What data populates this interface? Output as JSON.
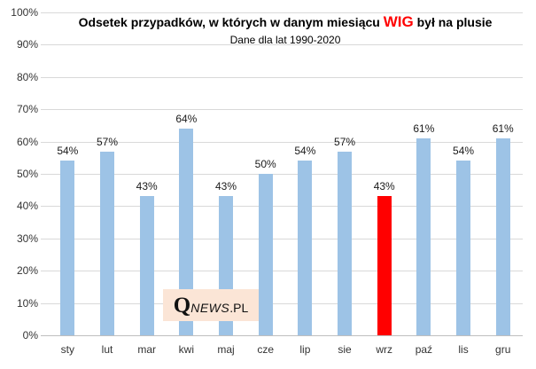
{
  "title": {
    "prefix": "Odsetek przypadków, w których w danym miesiącu ",
    "highlight": "WIG",
    "suffix": " był na plusie",
    "subtitle": "Dane dla lat 1990-2020",
    "highlight_color": "#FF0000"
  },
  "watermark": {
    "q": "Q",
    "news": "NEWS",
    "pl": ".PL",
    "background": "#FBE5D6"
  },
  "chart_data": {
    "type": "bar",
    "title": "Odsetek przypadków, w których w danym miesiącu WIG był na plusie",
    "subtitle": "Dane dla lat 1990-2020",
    "categories": [
      "sty",
      "lut",
      "mar",
      "kwi",
      "maj",
      "cze",
      "lip",
      "sie",
      "wrz",
      "paź",
      "lis",
      "gru"
    ],
    "values": [
      54,
      57,
      43,
      64,
      43,
      50,
      54,
      57,
      43,
      61,
      54,
      61
    ],
    "data_labels": [
      "54%",
      "57%",
      "43%",
      "64%",
      "43%",
      "50%",
      "54%",
      "57%",
      "43%",
      "61%",
      "54%",
      "61%"
    ],
    "unit": "%",
    "highlight_index": 8,
    "highlight_category": "wrz",
    "bar_color": "#9DC3E6",
    "highlight_color": "#FF0000",
    "xlabel": "",
    "ylabel": "",
    "ylim": [
      0,
      100
    ],
    "yticks": [
      {
        "value": 0,
        "label": "0%"
      },
      {
        "value": 10,
        "label": "10%"
      },
      {
        "value": 20,
        "label": "20%"
      },
      {
        "value": 30,
        "label": "30%"
      },
      {
        "value": 40,
        "label": "40%"
      },
      {
        "value": 50,
        "label": "50%"
      },
      {
        "value": 60,
        "label": "60%"
      },
      {
        "value": 70,
        "label": "70%"
      },
      {
        "value": 80,
        "label": "80%"
      },
      {
        "value": 90,
        "label": "90%"
      },
      {
        "value": 100,
        "label": "100%"
      }
    ],
    "grid": true,
    "gridline_color": "#D9D9D9",
    "axis_line_color": "#BFBFBF",
    "legend": false
  }
}
